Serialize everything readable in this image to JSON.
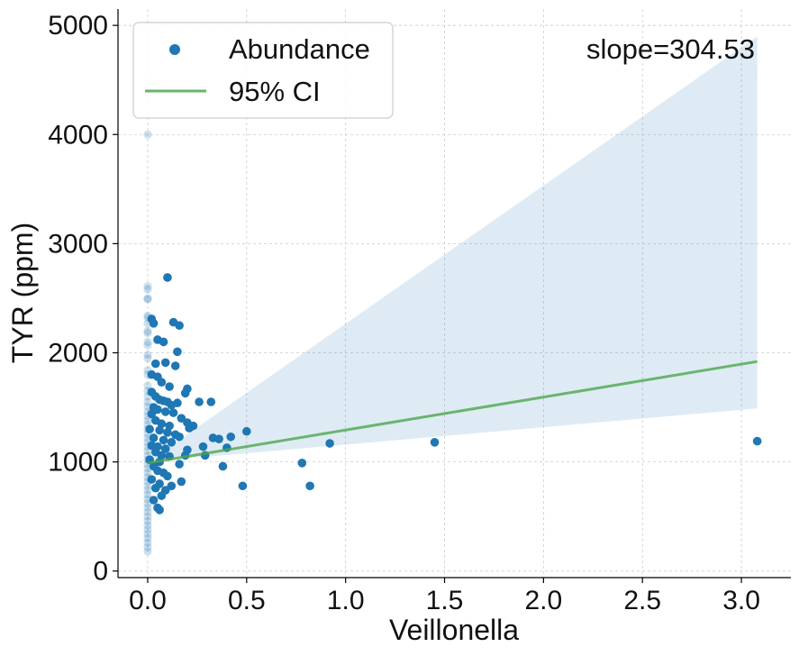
{
  "chart_data": {
    "type": "scatter",
    "xlabel": "Veillonella",
    "ylabel": "TYR (ppm)",
    "annotation": "slope=304.53",
    "slope": 304.53,
    "xlim": [
      -0.15,
      3.25
    ],
    "ylim": [
      -60,
      5150
    ],
    "x_ticks": [
      0.0,
      0.5,
      1.0,
      1.5,
      2.0,
      2.5,
      3.0
    ],
    "x_tick_labels": [
      "0.0",
      "0.5",
      "1.0",
      "1.5",
      "2.0",
      "2.5",
      "3.0"
    ],
    "y_ticks": [
      0,
      1000,
      2000,
      3000,
      4000,
      5000
    ],
    "y_tick_labels": [
      "0",
      "1000",
      "2000",
      "3000",
      "4000",
      "5000"
    ],
    "grid": true,
    "legend_position": "top-left",
    "colors": {
      "points": "#1f77b4",
      "fit_line": "#4ca64c",
      "ci_band": "#1f77b4"
    },
    "legend": [
      {
        "label": "Abundance",
        "type": "point",
        "color": "#1f77b4"
      },
      {
        "label": "95% CI",
        "type": "line",
        "color": "#6ab56a"
      }
    ],
    "fit_line": {
      "x": [
        0.0,
        3.08
      ],
      "y": [
        990,
        1920
      ]
    },
    "ci_band": {
      "x": [
        0.0,
        3.08
      ],
      "lower": [
        1000,
        1490
      ],
      "upper": [
        1000,
        4900
      ]
    },
    "series": [
      {
        "name": "Abundance",
        "faded_points": [
          [
            0.0,
            4000
          ],
          [
            0.0,
            2610
          ],
          [
            0.0,
            2580
          ],
          [
            0.0,
            2500
          ],
          [
            0.0,
            2490
          ],
          [
            0.0,
            2340
          ],
          [
            0.0,
            2320
          ],
          [
            0.0,
            2270
          ],
          [
            0.0,
            2200
          ],
          [
            0.0,
            2180
          ],
          [
            0.0,
            2100
          ],
          [
            0.0,
            2070
          ],
          [
            0.0,
            1980
          ],
          [
            0.0,
            1950
          ],
          [
            0.0,
            1840
          ],
          [
            0.0,
            1800
          ],
          [
            0.0,
            1700
          ],
          [
            0.0,
            1650
          ],
          [
            0.0,
            1600
          ],
          [
            0.0,
            1550
          ],
          [
            0.0,
            1510
          ],
          [
            0.0,
            1460
          ],
          [
            0.0,
            1420
          ],
          [
            0.0,
            1380
          ],
          [
            0.0,
            1340
          ],
          [
            0.0,
            1300
          ],
          [
            0.0,
            1260
          ],
          [
            0.0,
            1220
          ],
          [
            0.0,
            1180
          ],
          [
            0.0,
            1140
          ],
          [
            0.0,
            1100
          ],
          [
            0.0,
            1060
          ],
          [
            0.0,
            1020
          ],
          [
            0.0,
            980
          ],
          [
            0.0,
            940
          ],
          [
            0.0,
            900
          ],
          [
            0.0,
            860
          ],
          [
            0.0,
            820
          ],
          [
            0.0,
            780
          ],
          [
            0.0,
            740
          ],
          [
            0.0,
            700
          ],
          [
            0.0,
            660
          ],
          [
            0.0,
            620
          ],
          [
            0.0,
            580
          ],
          [
            0.0,
            540
          ],
          [
            0.0,
            500
          ],
          [
            0.0,
            460
          ],
          [
            0.0,
            420
          ],
          [
            0.0,
            380
          ],
          [
            0.0,
            340
          ],
          [
            0.0,
            300
          ],
          [
            0.0,
            260
          ],
          [
            0.0,
            220
          ],
          [
            0.0,
            180
          ]
        ],
        "points": [
          [
            0.1,
            2690
          ],
          [
            0.02,
            2310
          ],
          [
            0.13,
            2280
          ],
          [
            0.16,
            2250
          ],
          [
            0.03,
            2270
          ],
          [
            0.05,
            2120
          ],
          [
            0.08,
            2100
          ],
          [
            0.15,
            2010
          ],
          [
            0.04,
            1900
          ],
          [
            0.09,
            1910
          ],
          [
            0.14,
            1880
          ],
          [
            0.02,
            1800
          ],
          [
            0.05,
            1780
          ],
          [
            0.07,
            1730
          ],
          [
            0.11,
            1690
          ],
          [
            0.2,
            1670
          ],
          [
            0.19,
            1630
          ],
          [
            0.02,
            1640
          ],
          [
            0.04,
            1600
          ],
          [
            0.06,
            1570
          ],
          [
            0.08,
            1560
          ],
          [
            0.1,
            1550
          ],
          [
            0.12,
            1520
          ],
          [
            0.15,
            1540
          ],
          [
            0.26,
            1550
          ],
          [
            0.32,
            1550
          ],
          [
            0.03,
            1500
          ],
          [
            0.05,
            1480
          ],
          [
            0.09,
            1460
          ],
          [
            0.13,
            1450
          ],
          [
            0.17,
            1400
          ],
          [
            0.02,
            1440
          ],
          [
            0.04,
            1380
          ],
          [
            0.07,
            1350
          ],
          [
            0.11,
            1330
          ],
          [
            0.2,
            1360
          ],
          [
            0.23,
            1330
          ],
          [
            0.21,
            1310
          ],
          [
            0.01,
            1300
          ],
          [
            0.06,
            1290
          ],
          [
            0.1,
            1270
          ],
          [
            0.14,
            1250
          ],
          [
            0.16,
            1230
          ],
          [
            0.33,
            1220
          ],
          [
            0.36,
            1210
          ],
          [
            0.42,
            1230
          ],
          [
            0.5,
            1280
          ],
          [
            0.03,
            1220
          ],
          [
            0.08,
            1200
          ],
          [
            0.12,
            1180
          ],
          [
            0.02,
            1150
          ],
          [
            0.05,
            1140
          ],
          [
            0.09,
            1120
          ],
          [
            0.2,
            1110
          ],
          [
            0.28,
            1140
          ],
          [
            0.4,
            1130
          ],
          [
            0.04,
            1090
          ],
          [
            0.07,
            1060
          ],
          [
            0.11,
            1050
          ],
          [
            0.19,
            1060
          ],
          [
            0.29,
            1060
          ],
          [
            0.01,
            1020
          ],
          [
            0.06,
            1000
          ],
          [
            0.16,
            980
          ],
          [
            0.38,
            960
          ],
          [
            0.78,
            990
          ],
          [
            0.92,
            1170
          ],
          [
            1.45,
            1180
          ],
          [
            3.08,
            1190
          ],
          [
            0.03,
            960
          ],
          [
            0.05,
            920
          ],
          [
            0.08,
            900
          ],
          [
            0.1,
            870
          ],
          [
            0.02,
            840
          ],
          [
            0.17,
            820
          ],
          [
            0.06,
            800
          ],
          [
            0.12,
            780
          ],
          [
            0.04,
            760
          ],
          [
            0.48,
            780
          ],
          [
            0.82,
            780
          ],
          [
            0.09,
            740
          ],
          [
            0.07,
            690
          ],
          [
            0.03,
            650
          ],
          [
            0.05,
            580
          ],
          [
            0.06,
            560
          ]
        ]
      }
    ]
  }
}
